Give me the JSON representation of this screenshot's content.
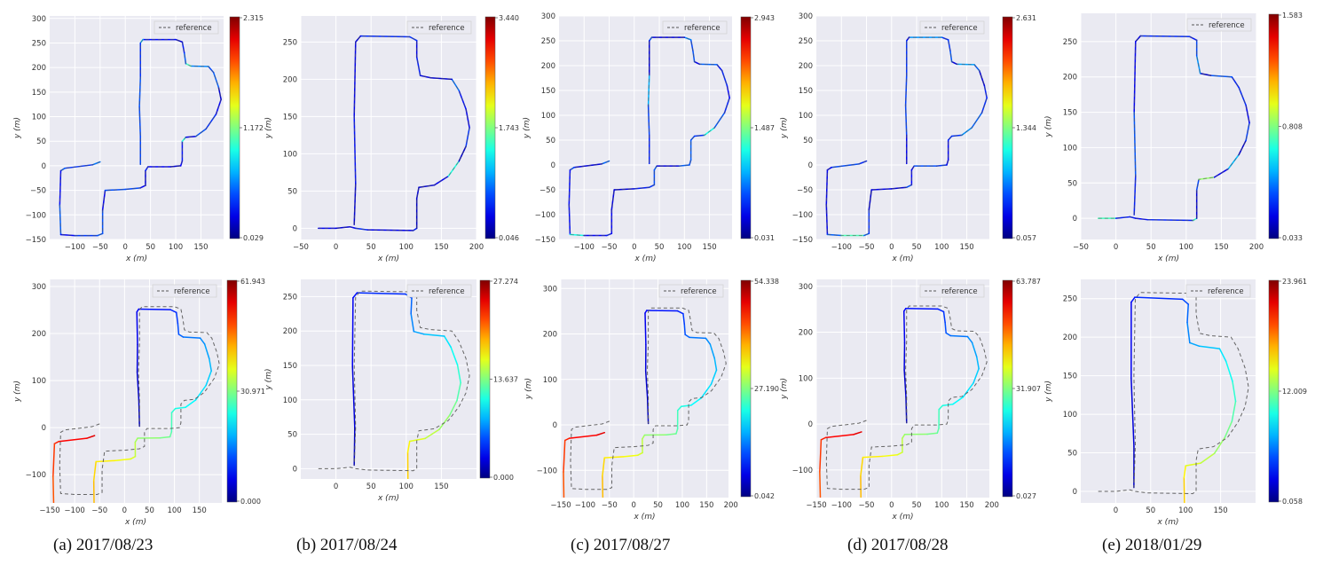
{
  "captions": [
    "(a) 2017/08/23",
    "(b) 2017/08/24",
    "(c) 2017/08/27",
    "(d) 2017/08/28",
    "(e) 2018/01/29"
  ],
  "chart_data": [
    {
      "type": "line",
      "id": "a-top",
      "xlabel": "x (m)",
      "ylabel": "y (m)",
      "legend": "reference",
      "legend_position": "top-right",
      "xlim": [
        -150,
        195
      ],
      "ylim": [
        -150,
        305
      ],
      "xticks": [
        -100,
        -50,
        0,
        50,
        100,
        150
      ],
      "yticks": [
        -150,
        -100,
        -50,
        0,
        50,
        100,
        150,
        200,
        250,
        300
      ],
      "colorbar": {
        "min": 0.029,
        "mid": 1.172,
        "max": 2.315
      },
      "route": "A",
      "offset": [
        0,
        0
      ],
      "color_mode": "noise",
      "error_level": 0.15,
      "seed": 3
    },
    {
      "type": "line",
      "id": "b-top",
      "xlabel": "x (m)",
      "ylabel": "y (m)",
      "legend": "reference",
      "legend_position": "top-right",
      "xlim": [
        -50,
        200
      ],
      "ylim": [
        -15,
        285
      ],
      "xticks": [
        -50,
        0,
        50,
        100,
        150,
        200
      ],
      "yticks": [
        0,
        50,
        100,
        150,
        200,
        250
      ],
      "colorbar": {
        "min": 0.046,
        "mid": 1.743,
        "max": 3.44
      },
      "route": "B",
      "offset": [
        0,
        0
      ],
      "color_mode": "noise",
      "error_level": 0.12,
      "seed": 7
    },
    {
      "type": "line",
      "id": "c-top",
      "xlabel": "x (m)",
      "ylabel": "y (m)",
      "legend": "reference",
      "legend_position": "top-right",
      "xlim": [
        -150,
        195
      ],
      "ylim": [
        -150,
        300
      ],
      "xticks": [
        -100,
        -50,
        0,
        50,
        100,
        150
      ],
      "yticks": [
        -150,
        -100,
        -50,
        0,
        50,
        100,
        150,
        200,
        250,
        300
      ],
      "colorbar": {
        "min": 0.031,
        "mid": 1.487,
        "max": 2.943
      },
      "route": "A",
      "offset": [
        0,
        0
      ],
      "color_mode": "noise",
      "error_level": 0.16,
      "seed": 11
    },
    {
      "type": "line",
      "id": "d-top",
      "xlabel": "x (m)",
      "ylabel": "y (m)",
      "legend": "reference",
      "legend_position": "top-right",
      "xlim": [
        -150,
        195
      ],
      "ylim": [
        -150,
        300
      ],
      "xticks": [
        -100,
        -50,
        0,
        50,
        100,
        150
      ],
      "yticks": [
        -150,
        -100,
        -50,
        0,
        50,
        100,
        150,
        200,
        250,
        300
      ],
      "colorbar": {
        "min": 0.057,
        "mid": 1.344,
        "max": 2.631
      },
      "route": "A",
      "offset": [
        0,
        0
      ],
      "color_mode": "noise",
      "error_level": 0.15,
      "seed": 19
    },
    {
      "type": "line",
      "id": "e-top",
      "xlabel": "x (m)",
      "ylabel": "y (m)",
      "legend": "reference",
      "legend_position": "top-right",
      "xlim": [
        -50,
        200
      ],
      "ylim": [
        -30,
        290
      ],
      "xticks": [
        -50,
        0,
        50,
        100,
        150,
        200
      ],
      "yticks": [
        0,
        50,
        100,
        150,
        200,
        250
      ],
      "colorbar": {
        "min": 0.033,
        "mid": 0.808,
        "max": 1.583
      },
      "route": "B",
      "offset": [
        0,
        0
      ],
      "color_mode": "noise",
      "error_level": 0.14,
      "seed": 23
    },
    {
      "type": "line",
      "id": "a-bottom",
      "xlabel": "x (m)",
      "ylabel": "y (m)",
      "legend": "reference",
      "legend_position": "top-right",
      "xlim": [
        -150,
        195
      ],
      "ylim": [
        -160,
        315
      ],
      "xticks": [
        -150,
        -100,
        -50,
        0,
        50,
        100,
        150
      ],
      "yticks": [
        -100,
        0,
        100,
        200,
        300
      ],
      "colorbar": {
        "min": 0.0,
        "mid": 30.971,
        "max": 61.943
      },
      "route": "A",
      "offset": [
        -8,
        -6
      ],
      "color_mode": "drift",
      "seed": 29
    },
    {
      "type": "line",
      "id": "b-bottom",
      "xlabel": "x (m)",
      "ylabel": "y (m)",
      "legend": "reference",
      "legend_position": "top-right",
      "xlim": [
        -50,
        200
      ],
      "ylim": [
        -15,
        275
      ],
      "xticks": [
        0,
        50,
        100,
        150
      ],
      "yticks": [
        0,
        50,
        100,
        150,
        200,
        250
      ],
      "colorbar": {
        "min": 0.0,
        "mid": 13.637,
        "max": 27.274
      },
      "route": "B",
      "offset": [
        -5,
        -2
      ],
      "color_mode": "drift",
      "seed": 31
    },
    {
      "type": "line",
      "id": "c-bottom",
      "xlabel": "x (m)",
      "ylabel": "y (m)",
      "legend": "reference",
      "legend_position": "top-right",
      "xlim": [
        -150,
        195
      ],
      "ylim": [
        -160,
        320
      ],
      "xticks": [
        -150,
        -100,
        -50,
        0,
        50,
        100,
        150,
        200
      ],
      "yticks": [
        -100,
        0,
        100,
        200,
        300
      ],
      "colorbar": {
        "min": 0.042,
        "mid": 27.19,
        "max": 54.338
      },
      "route": "A",
      "offset": [
        -10,
        -6
      ],
      "color_mode": "drift",
      "seed": 37
    },
    {
      "type": "line",
      "id": "d-bottom",
      "xlabel": "x (m)",
      "ylabel": "y (m)",
      "legend": "reference",
      "legend_position": "top-right",
      "xlim": [
        -150,
        195
      ],
      "ylim": [
        -160,
        315
      ],
      "xticks": [
        -150,
        -100,
        -50,
        0,
        50,
        100,
        150,
        200
      ],
      "yticks": [
        -100,
        0,
        100,
        200,
        300
      ],
      "colorbar": {
        "min": 0.027,
        "mid": 31.907,
        "max": 63.787
      },
      "route": "A",
      "offset": [
        -8,
        -6
      ],
      "color_mode": "drift",
      "seed": 41
    },
    {
      "type": "line",
      "id": "e-bottom",
      "xlabel": "x (m)",
      "ylabel": "y (m)",
      "legend": "reference",
      "legend_position": "top-right",
      "xlim": [
        -50,
        200
      ],
      "ylim": [
        -15,
        275
      ],
      "xticks": [
        0,
        50,
        100,
        150
      ],
      "yticks": [
        0,
        50,
        100,
        150,
        200,
        250
      ],
      "colorbar": {
        "min": 0.058,
        "mid": 12.009,
        "max": 23.961
      },
      "route": "B",
      "offset": [
        -8,
        -6
      ],
      "color_mode": "drift",
      "seed": 43
    }
  ],
  "routes": {
    "A": [
      [
        -50,
        8
      ],
      [
        -65,
        2
      ],
      [
        -120,
        -5
      ],
      [
        -128,
        -10
      ],
      [
        -130,
        -80
      ],
      [
        -128,
        -140
      ],
      [
        -100,
        -142
      ],
      [
        -55,
        -142
      ],
      [
        -45,
        -138
      ],
      [
        -45,
        -90
      ],
      [
        -40,
        -50
      ],
      [
        0,
        -48
      ],
      [
        30,
        -45
      ],
      [
        40,
        -40
      ],
      [
        40,
        -10
      ],
      [
        45,
        -2
      ],
      [
        90,
        -2
      ],
      [
        110,
        0
      ],
      [
        113,
        10
      ],
      [
        113,
        50
      ],
      [
        120,
        58
      ],
      [
        140,
        60
      ],
      [
        160,
        75
      ],
      [
        180,
        105
      ],
      [
        190,
        135
      ],
      [
        185,
        160
      ],
      [
        175,
        190
      ],
      [
        165,
        202
      ],
      [
        130,
        203
      ],
      [
        120,
        208
      ],
      [
        117,
        230
      ],
      [
        113,
        252
      ],
      [
        100,
        257
      ],
      [
        35,
        257
      ],
      [
        30,
        250
      ],
      [
        30,
        180
      ],
      [
        28,
        120
      ],
      [
        30,
        60
      ],
      [
        30,
        3
      ]
    ],
    "B": [
      [
        -25,
        0
      ],
      [
        0,
        0
      ],
      [
        20,
        2
      ],
      [
        28,
        0
      ],
      [
        45,
        -2
      ],
      [
        110,
        -3
      ],
      [
        115,
        0
      ],
      [
        115,
        40
      ],
      [
        118,
        55
      ],
      [
        140,
        58
      ],
      [
        160,
        70
      ],
      [
        175,
        90
      ],
      [
        185,
        110
      ],
      [
        190,
        135
      ],
      [
        185,
        160
      ],
      [
        175,
        185
      ],
      [
        165,
        200
      ],
      [
        135,
        202
      ],
      [
        120,
        205
      ],
      [
        115,
        230
      ],
      [
        115,
        252
      ],
      [
        105,
        257
      ],
      [
        35,
        258
      ],
      [
        28,
        250
      ],
      [
        26,
        150
      ],
      [
        28,
        60
      ],
      [
        26,
        5
      ]
    ]
  }
}
